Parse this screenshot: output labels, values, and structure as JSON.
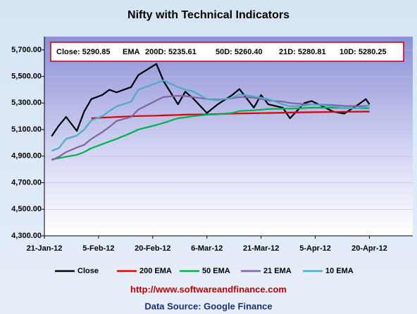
{
  "chart_data": {
    "type": "line",
    "title": "Nifty with Technical Indicators",
    "info_box": [
      "Close: 5290.85",
      "EMA",
      "200D: 5235.61",
      "50D: 5260.40",
      "21D: 5280.81",
      "10D: 5280.25"
    ],
    "x": [
      "23-Jan-12",
      "25-Jan-12",
      "27-Jan-12",
      "30-Jan-12",
      "1-Feb-12",
      "3-Feb-12",
      "6-Feb-12",
      "8-Feb-12",
      "10-Feb-12",
      "14-Feb-12",
      "16-Feb-12",
      "21-Feb-12",
      "23-Feb-12",
      "27-Feb-12",
      "29-Feb-12",
      "2-Mar-12",
      "6-Mar-12",
      "9-Mar-12",
      "13-Mar-12",
      "15-Mar-12",
      "19-Mar-12",
      "21-Mar-12",
      "23-Mar-12",
      "27-Mar-12",
      "29-Mar-12",
      "2-Apr-12",
      "4-Apr-12",
      "10-Apr-12",
      "13-Apr-12",
      "17-Apr-12",
      "19-Apr-12",
      "20-Apr-12"
    ],
    "series": [
      {
        "name": "Close",
        "color": "#000000",
        "values": [
          5050,
          5130,
          5195,
          5090,
          5235,
          5330,
          5360,
          5400,
          5380,
          5420,
          5510,
          5595,
          5465,
          5290,
          5385,
          5340,
          5225,
          5290,
          5360,
          5405,
          5265,
          5360,
          5290,
          5265,
          5185,
          5300,
          5315,
          5235,
          5220,
          5290,
          5330,
          5290.85
        ]
      },
      {
        "name": "200 EMA",
        "color": "#e00000",
        "values": [
          null,
          null,
          null,
          null,
          null,
          5185,
          5190,
          5192,
          5195,
          5200,
          5202,
          5205,
          5207,
          5210,
          5212,
          5213,
          5215,
          5217,
          5220,
          5221,
          5223,
          5224,
          5225,
          5227,
          5228,
          5230,
          5231,
          5233,
          5234,
          5235,
          5235.3,
          5235.61
        ]
      },
      {
        "name": "50 EMA",
        "color": "#00b050",
        "values": [
          4875,
          4885,
          4895,
          4910,
          4930,
          4960,
          4990,
          5010,
          5030,
          5075,
          5100,
          5135,
          5150,
          5185,
          5192,
          5200,
          5212,
          5215,
          5225,
          5240,
          5245,
          5250,
          5255,
          5257,
          5258,
          5262,
          5265,
          5264,
          5262,
          5261,
          5261,
          5260.4
        ]
      },
      {
        "name": "21 EMA",
        "color": "#8064a2",
        "values": [
          4870,
          4895,
          4930,
          4965,
          4985,
          5030,
          5080,
          5120,
          5165,
          5195,
          5250,
          5320,
          5345,
          5355,
          5352,
          5345,
          5330,
          5325,
          5335,
          5345,
          5340,
          5330,
          5320,
          5310,
          5300,
          5292,
          5290,
          5285,
          5278,
          5276,
          5278,
          5280.81
        ]
      },
      {
        "name": "10 EMA",
        "color": "#4bacc6",
        "values": [
          4940,
          4960,
          5030,
          5055,
          5100,
          5170,
          5200,
          5240,
          5275,
          5310,
          5400,
          5450,
          5470,
          5420,
          5400,
          5390,
          5330,
          5320,
          5340,
          5365,
          5350,
          5340,
          5330,
          5290,
          5275,
          5280,
          5290,
          5275,
          5260,
          5262,
          5272,
          5280.25
        ]
      }
    ],
    "xlim": [
      "21-Jan-12",
      "2-May-12"
    ],
    "xticks": [
      "21-Jan-12",
      "5-Feb-12",
      "20-Feb-12",
      "6-Mar-12",
      "21-Mar-12",
      "5-Apr-12",
      "20-Apr-12"
    ],
    "ylim": [
      4300,
      5800
    ],
    "yticks": [
      {
        "value": 4300,
        "label": "4,300.00"
      },
      {
        "value": 4500,
        "label": "4,500.00"
      },
      {
        "value": 4700,
        "label": "4,700.00"
      },
      {
        "value": 4900,
        "label": "4,900.00"
      },
      {
        "value": 5100,
        "label": "5,100.00"
      },
      {
        "value": 5300,
        "label": "5,300.00"
      },
      {
        "value": 5500,
        "label": "5,500.00"
      },
      {
        "value": 5700,
        "label": "5,700.00"
      }
    ],
    "grid": true,
    "legend": "bottom",
    "url": "http://www.softwareandfinance.com",
    "source": "Data Source: Google Finance"
  }
}
